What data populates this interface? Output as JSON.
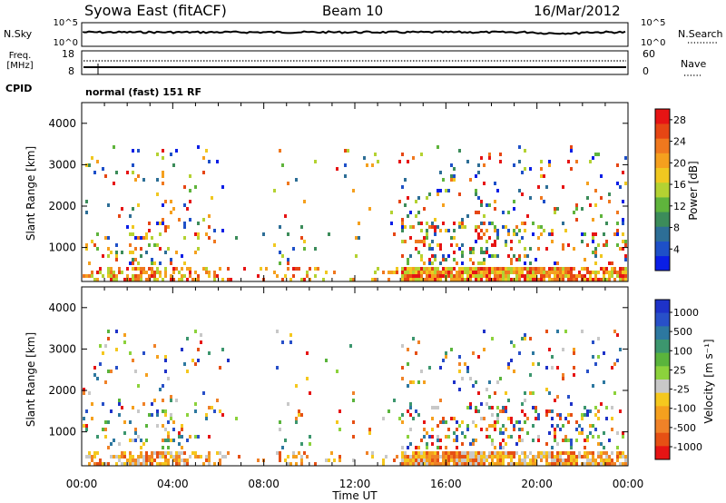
{
  "header": {
    "title": "Syowa East (fitACF)",
    "beam": "Beam 10",
    "date": "16/Mar/2012"
  },
  "top_panels": {
    "nsky": {
      "label": "N.Sky",
      "ticks": [
        "10^5",
        "10^0"
      ]
    },
    "nsearch": {
      "label": "N.Search",
      "ticks": [
        "10^5",
        "10^0"
      ]
    },
    "freq": {
      "label_line1": "Freq.",
      "label_line2": "[MHz]",
      "ticks": [
        "18",
        "8"
      ]
    },
    "nave": {
      "label": "Nave",
      "ticks": [
        "60",
        "0"
      ]
    },
    "cpid": {
      "label": "CPID",
      "value": "normal (fast) 151 RF"
    }
  },
  "chart_data": [
    {
      "type": "heatmap",
      "name": "power",
      "ylabel": "Slant Range [km]",
      "xlabel": "",
      "ylim": [
        180,
        4500
      ],
      "yticks": [
        "1000",
        "2000",
        "3000",
        "4000"
      ],
      "ytick_values": [
        1000,
        2000,
        3000,
        4000
      ],
      "colorbar": {
        "label": "Power [dB]",
        "ticks": [
          "4",
          "8",
          "12",
          "16",
          "20",
          "24",
          "28"
        ],
        "range": [
          0,
          30
        ],
        "colors": [
          "#0a1ee6",
          "#1e50c8",
          "#2d6e96",
          "#3c8c5a",
          "#5fb43c",
          "#b4d232",
          "#f0c820",
          "#f5a01e",
          "#f0781e",
          "#e64614",
          "#e61414"
        ]
      }
    },
    {
      "type": "heatmap",
      "name": "velocity",
      "ylabel": "Slant Range [km]",
      "xlabel": "Time UT",
      "ylim": [
        180,
        4500
      ],
      "yticks": [
        "1000",
        "2000",
        "3000",
        "4000"
      ],
      "ytick_values": [
        1000,
        2000,
        3000,
        4000
      ],
      "xticks": [
        "00:00",
        "04:00",
        "08:00",
        "12:00",
        "16:00",
        "20:00",
        "00:00"
      ],
      "xtick_hours": [
        0,
        4,
        8,
        12,
        16,
        20,
        24
      ],
      "xlim_hours": [
        0,
        24
      ],
      "colorbar": {
        "label": "Velocity [m s⁻¹]",
        "ticks": [
          "1000",
          "500",
          "100",
          "25",
          "-25",
          "-100",
          "-500",
          "-1000"
        ],
        "colors": [
          "#1e32c8",
          "#2850c8",
          "#2d78a0",
          "#3c966e",
          "#5ab43c",
          "#8cd23c",
          "#c8c8c8",
          "#f5c81e",
          "#f5a01e",
          "#f08228",
          "#e65014",
          "#e61414"
        ]
      }
    }
  ]
}
